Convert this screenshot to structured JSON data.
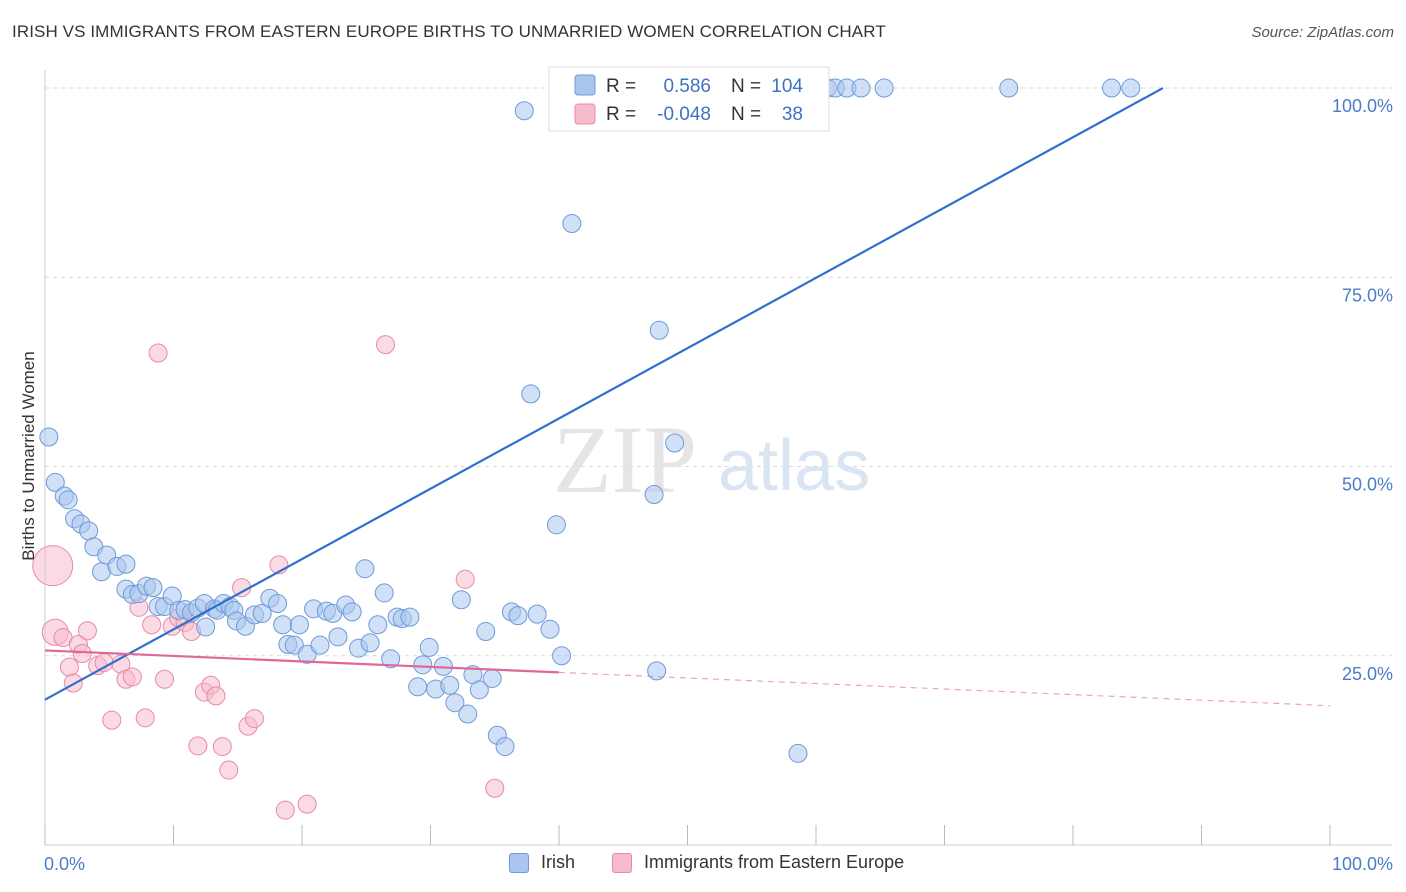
{
  "header": {
    "title": "IRISH VS IMMIGRANTS FROM EASTERN EUROPE BIRTHS TO UNMARRIED WOMEN CORRELATION CHART",
    "source": "Source: ZipAtlas.com"
  },
  "watermark": {
    "zip": "ZIP",
    "atlas": "atlas"
  },
  "colors": {
    "blue_fill": "#aac6ee",
    "blue_stroke": "#6f9ad8",
    "blue_line": "#2f6fce",
    "pink_fill": "#f5bccc",
    "pink_stroke": "#e88aa6",
    "pink_line": "#e0679a",
    "grid": "#d9d9d9",
    "tick_text": "#4a7cc8"
  },
  "legend_top": {
    "rows": [
      {
        "r_label": "R =",
        "r_value": "0.586",
        "n_label": "N =",
        "n_value": "104"
      },
      {
        "r_label": "R =",
        "r_value": "-0.048",
        "n_label": "N =",
        "n_value": "38"
      }
    ]
  },
  "legend_bottom": {
    "items": [
      {
        "label": "Irish"
      },
      {
        "label": "Immigrants from Eastern Europe"
      }
    ]
  },
  "chart_data": {
    "type": "scatter",
    "title": "IRISH VS IMMIGRANTS FROM EASTERN EUROPE BIRTHS TO UNMARRIED WOMEN CORRELATION CHART",
    "xlabel": "",
    "ylabel": "Births to Unmarried Women",
    "xlim": [
      0,
      100
    ],
    "ylim": [
      0,
      100
    ],
    "x_tick_labels": [
      "0.0%",
      "100.0%"
    ],
    "y_ticks": [
      25,
      50,
      75,
      100
    ],
    "y_tick_labels": [
      "25.0%",
      "50.0%",
      "75.0%",
      "100.0%"
    ],
    "grid": true,
    "legend_position": "top-center",
    "series": [
      {
        "name": "Irish",
        "r": 0.586,
        "n": 104,
        "trend": {
          "x": [
            0,
            87
          ],
          "y": [
            19.2,
            100
          ]
        },
        "points": [
          [
            0.3,
            53.9
          ],
          [
            0.8,
            47.9
          ],
          [
            1.5,
            46.1
          ],
          [
            1.8,
            45.6
          ],
          [
            2.3,
            43.1
          ],
          [
            2.8,
            42.4
          ],
          [
            3.4,
            41.5
          ],
          [
            3.8,
            39.4
          ],
          [
            4.4,
            36.1
          ],
          [
            4.8,
            38.3
          ],
          [
            5.6,
            36.8
          ],
          [
            6.3,
            37.1
          ],
          [
            6.3,
            33.8
          ],
          [
            6.8,
            33.1
          ],
          [
            7.3,
            33.2
          ],
          [
            7.9,
            34.2
          ],
          [
            8.4,
            34.0
          ],
          [
            8.8,
            31.5
          ],
          [
            9.3,
            31.5
          ],
          [
            9.9,
            32.9
          ],
          [
            10.4,
            31.0
          ],
          [
            10.9,
            31.1
          ],
          [
            11.4,
            30.7
          ],
          [
            11.9,
            31.3
          ],
          [
            12.4,
            31.9
          ],
          [
            12.5,
            28.8
          ],
          [
            13.2,
            31.2
          ],
          [
            13.4,
            31.0
          ],
          [
            13.9,
            31.9
          ],
          [
            14.4,
            31.5
          ],
          [
            14.7,
            31.0
          ],
          [
            14.9,
            29.6
          ],
          [
            15.6,
            28.9
          ],
          [
            16.3,
            30.4
          ],
          [
            16.9,
            30.6
          ],
          [
            17.5,
            32.6
          ],
          [
            18.1,
            31.9
          ],
          [
            18.5,
            29.1
          ],
          [
            18.9,
            26.5
          ],
          [
            19.4,
            26.4
          ],
          [
            19.8,
            29.1
          ],
          [
            20.4,
            25.2
          ],
          [
            20.9,
            31.2
          ],
          [
            21.4,
            26.4
          ],
          [
            21.9,
            30.9
          ],
          [
            22.4,
            30.6
          ],
          [
            22.8,
            27.5
          ],
          [
            23.4,
            31.7
          ],
          [
            23.9,
            30.8
          ],
          [
            24.4,
            26.0
          ],
          [
            24.9,
            36.5
          ],
          [
            25.3,
            26.7
          ],
          [
            25.9,
            29.1
          ],
          [
            26.4,
            33.3
          ],
          [
            26.9,
            24.6
          ],
          [
            27.4,
            30.1
          ],
          [
            27.8,
            29.9
          ],
          [
            28.4,
            30.1
          ],
          [
            29.0,
            20.9
          ],
          [
            29.4,
            23.8
          ],
          [
            29.9,
            26.1
          ],
          [
            30.4,
            20.6
          ],
          [
            31.0,
            23.6
          ],
          [
            31.5,
            21.1
          ],
          [
            31.9,
            18.8
          ],
          [
            32.4,
            32.4
          ],
          [
            32.9,
            17.3
          ],
          [
            33.3,
            22.5
          ],
          [
            33.8,
            20.5
          ],
          [
            34.3,
            28.2
          ],
          [
            34.8,
            22.0
          ],
          [
            35.2,
            14.5
          ],
          [
            35.8,
            13.0
          ],
          [
            36.3,
            30.8
          ],
          [
            36.8,
            30.3
          ],
          [
            37.3,
            97.0
          ],
          [
            37.8,
            59.6
          ],
          [
            38.3,
            30.5
          ],
          [
            39.3,
            28.5
          ],
          [
            39.8,
            42.3
          ],
          [
            40.2,
            25.0
          ],
          [
            41.0,
            82.1
          ],
          [
            42.0,
            100
          ],
          [
            43.6,
            100
          ],
          [
            46.0,
            100
          ],
          [
            47.0,
            100
          ],
          [
            47.6,
            23.0
          ],
          [
            47.4,
            46.3
          ],
          [
            47.8,
            68.0
          ],
          [
            49.0,
            53.1
          ],
          [
            50.4,
            100
          ],
          [
            52.1,
            100
          ],
          [
            53.3,
            100
          ],
          [
            58.6,
            12.1
          ],
          [
            59.3,
            100
          ],
          [
            60.9,
            100
          ],
          [
            61.5,
            100
          ],
          [
            62.4,
            100
          ],
          [
            63.5,
            100
          ],
          [
            65.3,
            100
          ],
          [
            75.0,
            100
          ],
          [
            83.0,
            100
          ],
          [
            84.5,
            100
          ],
          [
            44.0,
            100
          ]
        ]
      },
      {
        "name": "Immigrants from Eastern Europe",
        "r": -0.048,
        "n": 38,
        "trend": {
          "x": [
            0,
            40
          ],
          "y": [
            25.7,
            22.8
          ],
          "extended": {
            "x": [
              40,
              100
            ],
            "y": [
              22.8,
              18.4
            ]
          }
        },
        "points": [
          [
            0.6,
            36.9
          ],
          [
            0.8,
            28.1
          ],
          [
            1.4,
            27.4
          ],
          [
            1.9,
            23.5
          ],
          [
            2.2,
            21.4
          ],
          [
            2.6,
            26.5
          ],
          [
            2.9,
            25.3
          ],
          [
            3.3,
            28.3
          ],
          [
            4.1,
            23.7
          ],
          [
            4.6,
            24.1
          ],
          [
            5.2,
            16.5
          ],
          [
            5.9,
            23.9
          ],
          [
            6.3,
            21.9
          ],
          [
            6.8,
            22.2
          ],
          [
            7.3,
            31.4
          ],
          [
            7.8,
            16.8
          ],
          [
            8.3,
            29.1
          ],
          [
            8.8,
            65.0
          ],
          [
            9.3,
            21.9
          ],
          [
            9.9,
            28.9
          ],
          [
            10.4,
            30.0
          ],
          [
            10.9,
            29.4
          ],
          [
            11.4,
            28.2
          ],
          [
            11.9,
            13.1
          ],
          [
            12.4,
            20.2
          ],
          [
            12.9,
            21.1
          ],
          [
            13.3,
            19.7
          ],
          [
            13.8,
            13.0
          ],
          [
            14.3,
            9.9
          ],
          [
            15.3,
            34.0
          ],
          [
            15.8,
            15.7
          ],
          [
            16.3,
            16.7
          ],
          [
            18.2,
            37.0
          ],
          [
            18.7,
            4.6
          ],
          [
            20.4,
            5.4
          ],
          [
            26.5,
            66.1
          ],
          [
            32.7,
            35.1
          ],
          [
            35.0,
            7.5
          ]
        ]
      }
    ]
  }
}
